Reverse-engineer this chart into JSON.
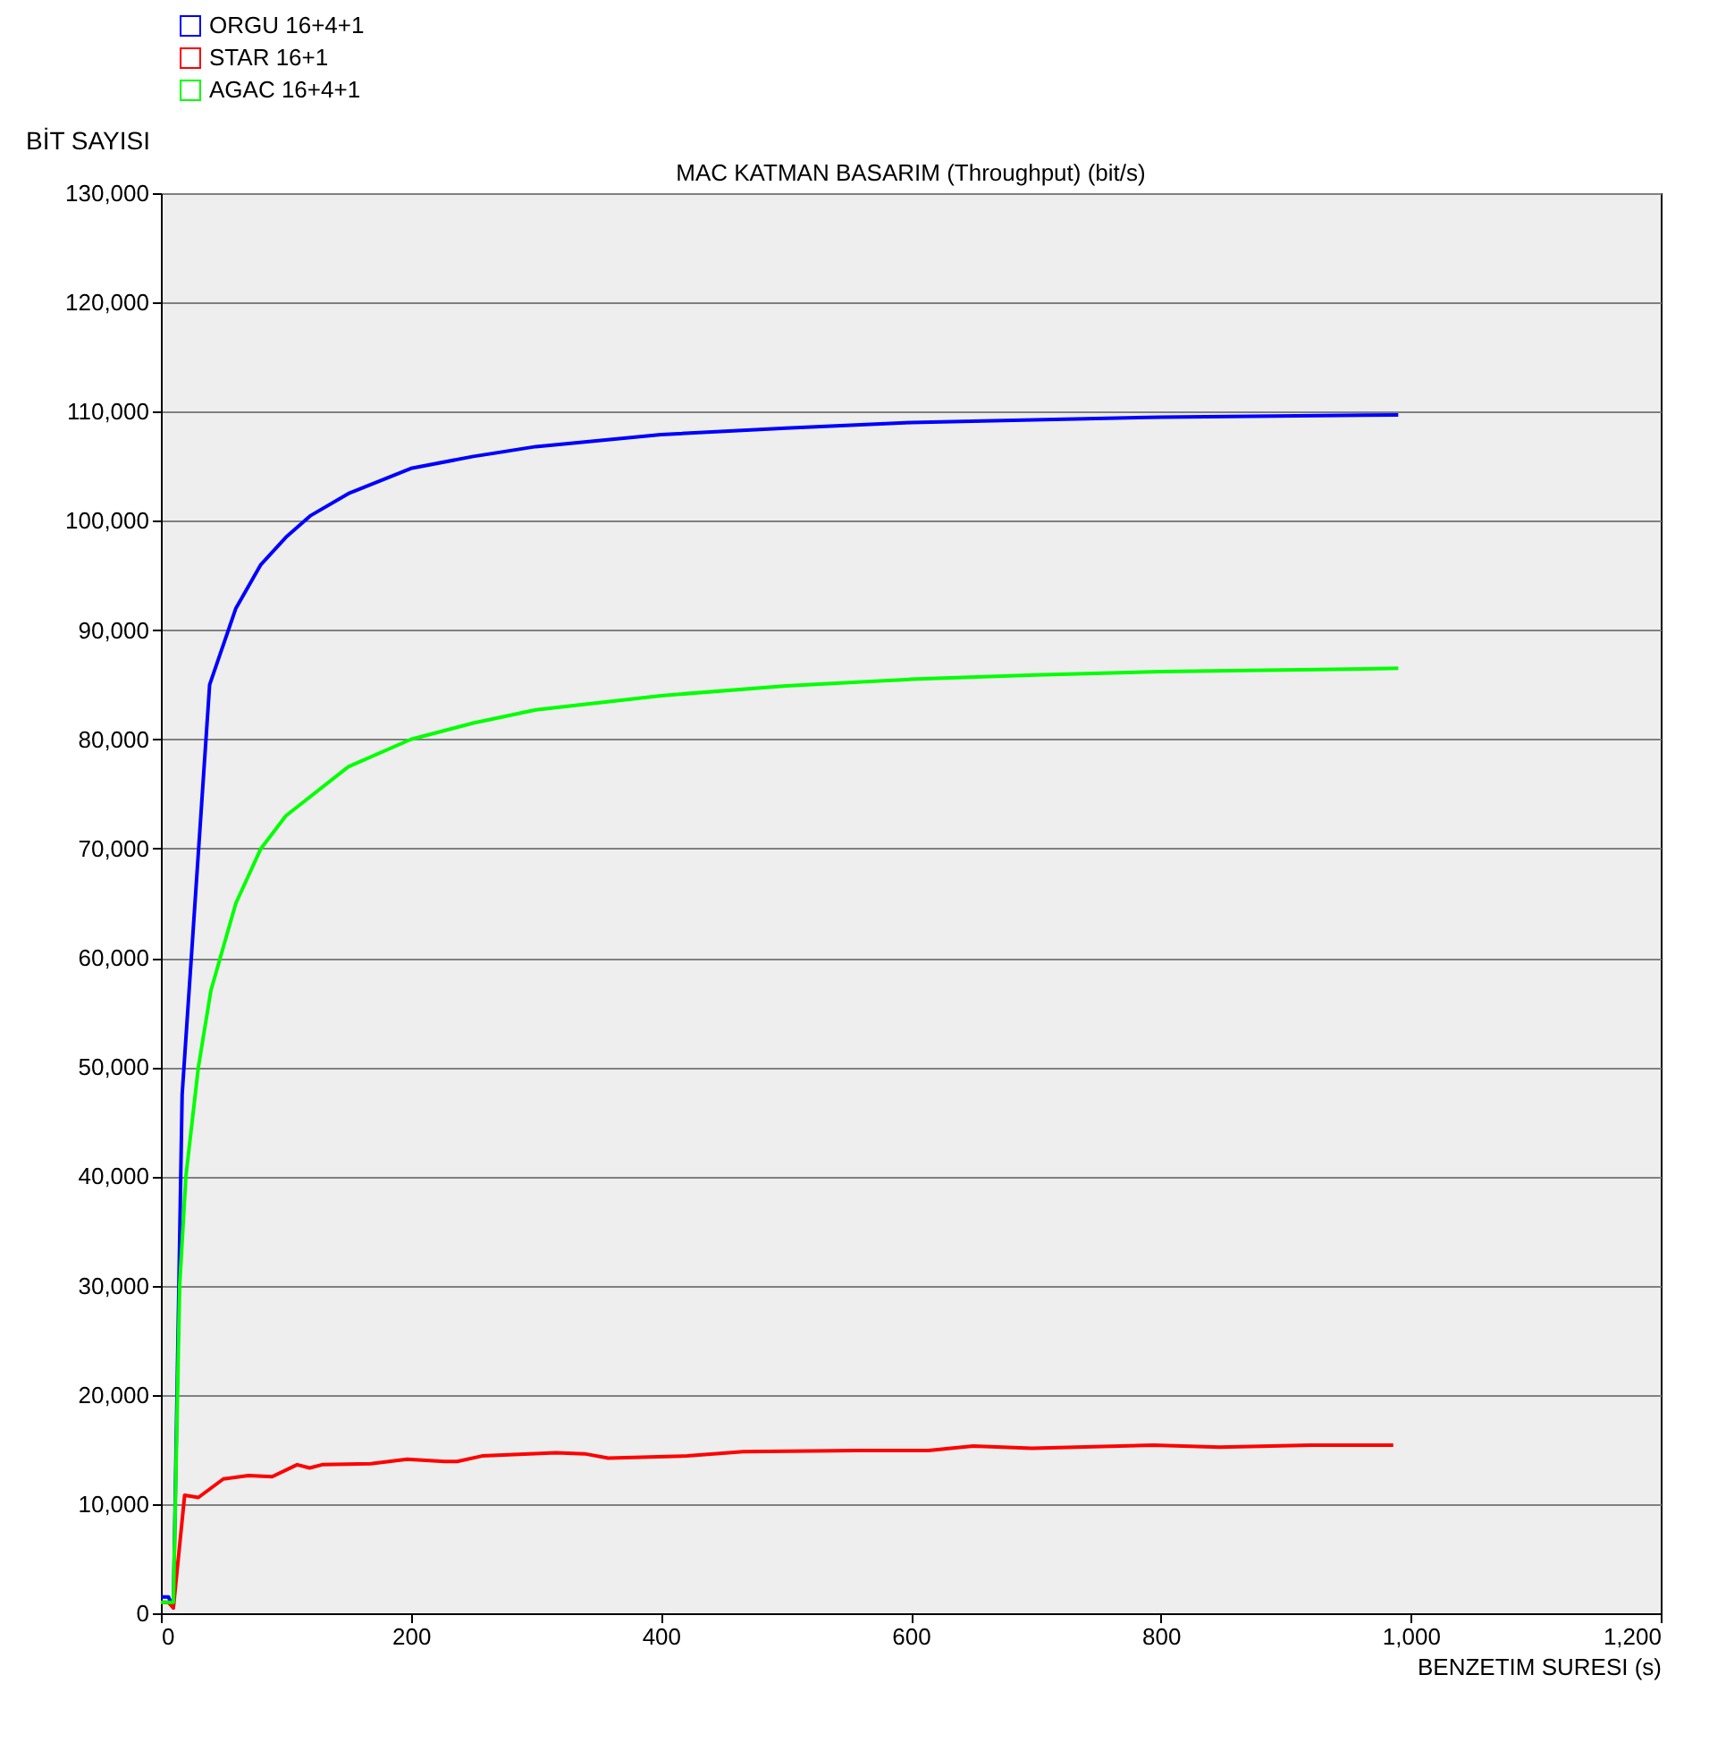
{
  "chart_data": {
    "type": "line",
    "title": "MAC KATMAN BASARIM (Throughput) (bit/s)",
    "xlabel": "BENZETIM SURESI (s)",
    "ylabel": "BİT SAYISI",
    "xlim": [
      0,
      1200
    ],
    "xticks": [
      0,
      200,
      400,
      600,
      800,
      {
        "value": 1000,
        "label": "1,000"
      },
      {
        "value": 1200,
        "label": "1,200"
      }
    ],
    "ylim": [
      0,
      130000
    ],
    "yticks": [
      0,
      {
        "value": 10000,
        "label": "10,000"
      },
      {
        "value": 20000,
        "label": "20,000"
      },
      {
        "value": 30000,
        "label": "30,000"
      },
      {
        "value": 40000,
        "label": "40,000"
      },
      {
        "value": 50000,
        "label": "50,000"
      },
      {
        "value": 60000,
        "label": "60,000"
      },
      {
        "value": 70000,
        "label": "70,000"
      },
      {
        "value": 80000,
        "label": "80,000"
      },
      {
        "value": 90000,
        "label": "90,000"
      },
      {
        "value": 100000,
        "label": "100,000"
      },
      {
        "value": 110000,
        "label": "110,000"
      },
      {
        "value": 120000,
        "label": "120,000"
      },
      {
        "value": 130000,
        "label": "130,000"
      }
    ],
    "grid": "y",
    "legend": "top left",
    "marker": "none",
    "line_style": "solid",
    "series": [
      {
        "name": "ORGU 16+4+1",
        "color": "#0000ff",
        "x": [
          0,
          6,
          10,
          17,
          39,
          60,
          80,
          100,
          120,
          150,
          200,
          250,
          300,
          400,
          500,
          600,
          800,
          990
        ],
        "values": [
          1500,
          1500,
          500,
          47500,
          85000,
          92000,
          96000,
          98500,
          100500,
          102500,
          104800,
          105900,
          106800,
          107900,
          108500,
          109000,
          109500,
          109700
        ]
      },
      {
        "name": "STAR 16+1",
        "color": "#ff0000",
        "x": [
          0,
          6,
          10,
          19,
          30,
          50,
          70,
          89,
          109,
          119,
          129,
          168,
          197,
          227,
          237,
          257,
          316,
          339,
          358,
          421,
          466,
          558,
          614,
          650,
          697,
          794,
          847,
          920,
          986
        ],
        "values": [
          1000,
          1000,
          500,
          10800,
          10600,
          12300,
          12600,
          12500,
          13600,
          13300,
          13600,
          13700,
          14100,
          13900,
          13900,
          14400,
          14700,
          14600,
          14200,
          14400,
          14800,
          14900,
          14900,
          15300,
          15100,
          15400,
          15200,
          15400,
          15400
        ]
      },
      {
        "name": "AGAC 16+4+1",
        "color": "#00ff00",
        "x": [
          0,
          6,
          10,
          15,
          20,
          30,
          40,
          60,
          80,
          100,
          150,
          200,
          250,
          300,
          400,
          500,
          600,
          700,
          800,
          990
        ],
        "values": [
          1000,
          1000,
          1000,
          30000,
          40000,
          50000,
          57000,
          65000,
          70000,
          73000,
          77500,
          80000,
          81500,
          82700,
          84000,
          84900,
          85500,
          85900,
          86200,
          86500
        ]
      }
    ]
  }
}
